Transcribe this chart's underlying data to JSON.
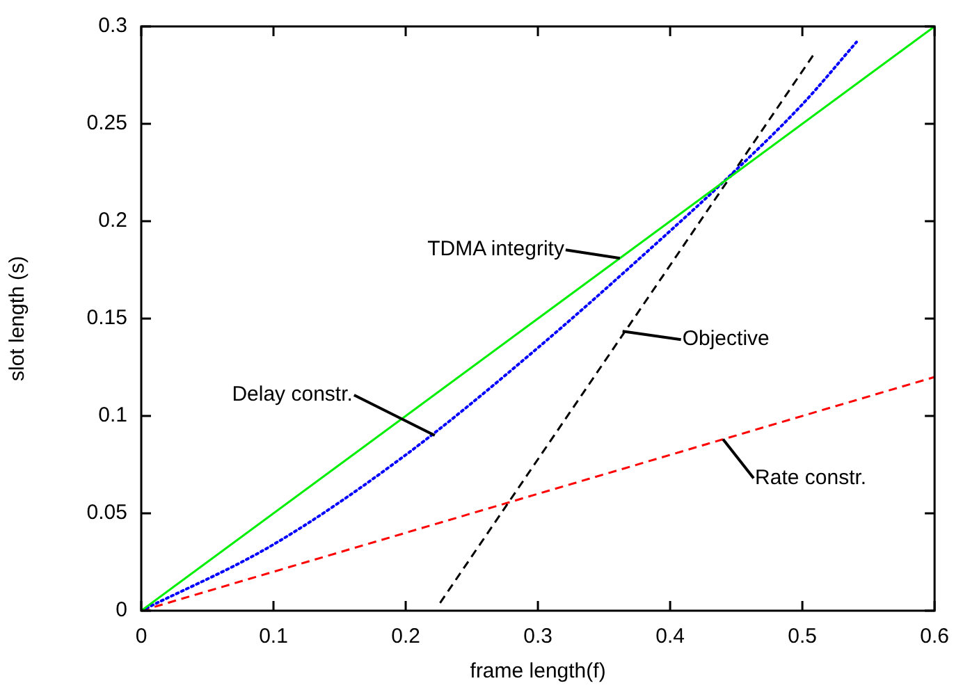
{
  "chart_data": {
    "type": "line",
    "xlabel": "frame length(f)",
    "ylabel": "slot length (s)",
    "xlim": [
      0,
      0.6
    ],
    "ylim": [
      0,
      0.3
    ],
    "xticks": [
      0,
      0.1,
      0.2,
      0.3,
      0.4,
      0.5,
      0.6
    ],
    "yticks": [
      0,
      0.05,
      0.1,
      0.15,
      0.2,
      0.25,
      0.3
    ],
    "grid": false,
    "legend": false,
    "marker": "none",
    "series": [
      {
        "color": "#00ee00",
        "line_style": "solid",
        "x": [
          0,
          0.6
        ],
        "values": [
          0,
          0.3
        ]
      },
      {
        "color": "#0000ff",
        "line_style": "dotted",
        "x": [
          0,
          0.1,
          0.2,
          0.3,
          0.4,
          0.44,
          0.5,
          0.541
        ],
        "values": [
          0,
          0.034,
          0.08,
          0.135,
          0.195,
          0.22,
          0.26,
          0.292
        ]
      },
      {
        "color": "#000000",
        "line_style": "dashed",
        "x": [
          0.226,
          0.509
        ],
        "values": [
          0.004,
          0.286
        ]
      },
      {
        "color": "#ff0000",
        "line_style": "dashed",
        "x": [
          0,
          0.6
        ],
        "values": [
          0,
          0.12
        ]
      }
    ],
    "annotations": [
      {
        "text": "TDMA integrity",
        "x": 0.362,
        "y": 0.181
      },
      {
        "text": "Objective",
        "x": 0.364,
        "y": 0.1435
      },
      {
        "text": "Delay constr.",
        "x": 0.222,
        "y": 0.09
      },
      {
        "text": "Rate constr.",
        "x": 0.44,
        "y": 0.088
      }
    ]
  }
}
